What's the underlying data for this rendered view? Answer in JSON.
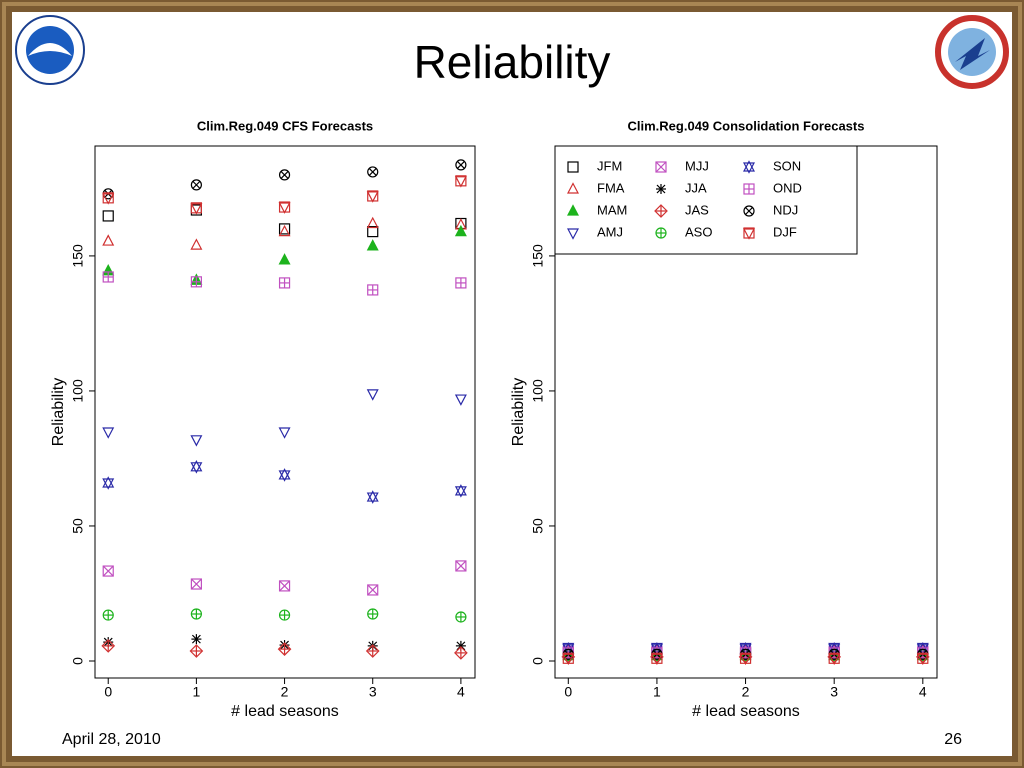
{
  "title": "Reliability",
  "footer": {
    "date": "April 28, 2010",
    "page": "26"
  },
  "chart_data": [
    {
      "type": "scatter",
      "title": "Clim.Reg.049  CFS Forecasts",
      "x_label": "# lead seasons",
      "y_label": "Reliability",
      "x": [
        0,
        1,
        2,
        3,
        4
      ],
      "xlim": [
        -0.15,
        4.16
      ],
      "ylim": [
        -6.3,
        190.7
      ],
      "xticks": [
        0,
        1,
        2,
        3,
        4
      ],
      "yticks": [
        0,
        50,
        100,
        150
      ],
      "series": [
        {
          "color": "#000000",
          "marker": "square",
          "values": [
            164.8,
            167,
            160,
            159,
            162
          ]
        },
        {
          "color": "#d03030",
          "marker": "triangle",
          "values": [
            155.5,
            154,
            159,
            162,
            161.5
          ]
        },
        {
          "color": "#1db31d",
          "marker": "triangle-filled",
          "values": [
            144.5,
            141,
            148.5,
            153.7,
            159
          ]
        },
        {
          "color": "#2a2aa8",
          "marker": "triangle-down",
          "values": [
            84.8,
            81.9,
            84.8,
            98.9,
            97
          ]
        },
        {
          "color": "#c050c0",
          "marker": "square-x",
          "values": [
            33.3,
            28.5,
            27.8,
            26.3,
            35.2
          ]
        },
        {
          "color": "#000000",
          "marker": "asterisk",
          "values": [
            7,
            8.1,
            5.9,
            5.6,
            5.6
          ]
        },
        {
          "color": "#d03030",
          "marker": "diamond-plus",
          "values": [
            5.6,
            3.7,
            4.4,
            3.7,
            3
          ]
        },
        {
          "color": "#1db31d",
          "marker": "circle-plus",
          "values": [
            17,
            17.4,
            17,
            17.4,
            16.3
          ]
        },
        {
          "color": "#2a2aa8",
          "marker": "star",
          "values": [
            65.9,
            71.9,
            68.9,
            60.7,
            63
          ]
        },
        {
          "color": "#c050c0",
          "marker": "square-plus",
          "values": [
            142.2,
            140.4,
            140,
            137.4,
            140
          ]
        },
        {
          "color": "#000000",
          "marker": "circle-x",
          "values": [
            173,
            176.3,
            180,
            181.1,
            183.7
          ]
        },
        {
          "color": "#d03030",
          "marker": "square-triangle",
          "values": [
            171.5,
            167.8,
            168.1,
            172.2,
            177.8
          ]
        }
      ]
    },
    {
      "type": "scatter",
      "title": "Clim.Reg.049  Consolidation Forecasts",
      "x_label": "# lead seasons",
      "y_label": "Reliability",
      "x": [
        0,
        1,
        2,
        3,
        4
      ],
      "xlim": [
        -0.15,
        4.16
      ],
      "ylim": [
        -6.3,
        190.7
      ],
      "xticks": [
        0,
        1,
        2,
        3,
        4
      ],
      "yticks": [
        0,
        50,
        100,
        150
      ],
      "legend": "upper left",
      "series": [
        {
          "name": "JFM",
          "color": "#000000",
          "marker": "square",
          "values": [
            3,
            3,
            3,
            3,
            3
          ]
        },
        {
          "name": "FMA",
          "color": "#d03030",
          "marker": "triangle",
          "values": [
            4,
            4,
            4,
            4,
            4
          ]
        },
        {
          "name": "MAM",
          "color": "#1db31d",
          "marker": "triangle-filled",
          "values": [
            2,
            2,
            2,
            2,
            2
          ]
        },
        {
          "name": "AMJ",
          "color": "#2a2aa8",
          "marker": "triangle-down",
          "values": [
            5,
            5,
            5,
            5,
            5
          ]
        },
        {
          "name": "MJJ",
          "color": "#c050c0",
          "marker": "square-x",
          "values": [
            3.5,
            3.5,
            3.5,
            3.5,
            3.5
          ]
        },
        {
          "name": "JJA",
          "color": "#000000",
          "marker": "asterisk",
          "values": [
            2.5,
            2.5,
            2.5,
            2.5,
            2.5
          ]
        },
        {
          "name": "JAS",
          "color": "#d03030",
          "marker": "diamond-plus",
          "values": [
            1.5,
            1.5,
            1.5,
            1.5,
            1.5
          ]
        },
        {
          "name": "ASO",
          "color": "#1db31d",
          "marker": "circle-plus",
          "values": [
            2,
            2,
            2,
            2,
            2
          ]
        },
        {
          "name": "SON",
          "color": "#2a2aa8",
          "marker": "star",
          "values": [
            4.5,
            4.5,
            4.5,
            4.5,
            4.5
          ]
        },
        {
          "name": "OND",
          "color": "#c050c0",
          "marker": "square-plus",
          "values": [
            3,
            3,
            3,
            3,
            3
          ]
        },
        {
          "name": "NDJ",
          "color": "#000000",
          "marker": "circle-x",
          "values": [
            2.5,
            2.5,
            2.5,
            2.5,
            2.5
          ]
        },
        {
          "name": "DJF",
          "color": "#d03030",
          "marker": "square-triangle",
          "values": [
            1,
            1,
            1,
            1,
            1
          ]
        }
      ]
    }
  ]
}
